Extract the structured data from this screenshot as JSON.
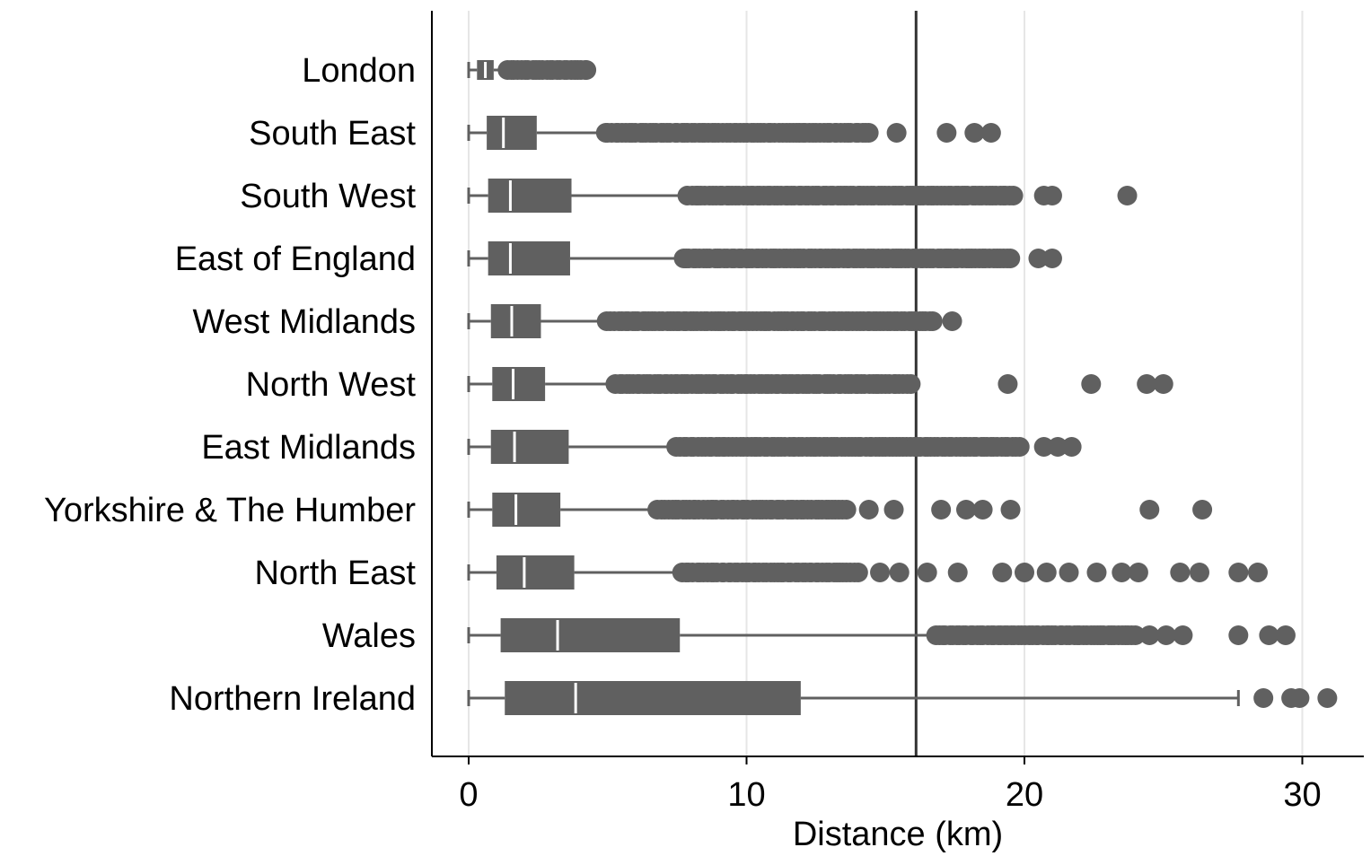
{
  "chart_data": {
    "type": "boxplot",
    "orientation": "horizontal",
    "xlabel": "Distance (km)",
    "ylabel": "",
    "xlim": [
      -1.3,
      32.2
    ],
    "xticks": [
      0,
      10,
      20,
      30
    ],
    "grid": "vertical",
    "reference_line": 16.1,
    "colors": {
      "box": "#606060",
      "median": "#ffffff",
      "grid": "#e6e6e6",
      "axis": "#000000",
      "reference": "#333333"
    },
    "categories": [
      "London",
      "South East",
      "South West",
      "East of England",
      "West Midlands",
      "North West",
      "East Midlands",
      "Yorkshire & The Humber",
      "North East",
      "Wales",
      "Northern Ireland"
    ],
    "boxes": [
      {
        "region": "London",
        "min": 0,
        "q1": 0.3,
        "median": 0.6,
        "q3": 0.9,
        "max": 1.4,
        "outlier_range": [
          1.4,
          4.2
        ],
        "outliers": [
          4.2
        ]
      },
      {
        "region": "South East",
        "min": 0,
        "q1": 0.65,
        "median": 1.25,
        "q3": 2.45,
        "max": 4.9,
        "outlier_range": [
          4.9,
          14.4
        ],
        "outliers": [
          15.4,
          17.2,
          18.2,
          18.8
        ]
      },
      {
        "region": "South West",
        "min": 0,
        "q1": 0.7,
        "median": 1.5,
        "q3": 3.7,
        "max": 7.9,
        "outlier_range": [
          7.9,
          19.6
        ],
        "outliers": [
          20.7,
          21.0,
          23.7
        ]
      },
      {
        "region": "East of England",
        "min": 0,
        "q1": 0.7,
        "median": 1.5,
        "q3": 3.65,
        "max": 7.7,
        "outlier_range": [
          7.7,
          19.5
        ],
        "outliers": [
          17.2,
          20.5,
          21.0
        ]
      },
      {
        "region": "West Midlands",
        "min": 0,
        "q1": 0.8,
        "median": 1.55,
        "q3": 2.6,
        "max": 5.0,
        "outlier_range": [
          5.0,
          16.7
        ],
        "outliers": [
          17.4
        ]
      },
      {
        "region": "North West",
        "min": 0,
        "q1": 0.85,
        "median": 1.6,
        "q3": 2.75,
        "max": 5.3,
        "outlier_range": [
          5.3,
          15.9
        ],
        "outliers": [
          19.4,
          22.4,
          24.4,
          25.0
        ]
      },
      {
        "region": "East Midlands",
        "min": 0,
        "q1": 0.8,
        "median": 1.65,
        "q3": 3.6,
        "max": 7.5,
        "outlier_range": [
          7.5,
          19.8
        ],
        "outliers": [
          20.7,
          21.2,
          21.7
        ]
      },
      {
        "region": "Yorkshire & The Humber",
        "min": 0,
        "q1": 0.85,
        "median": 1.7,
        "q3": 3.3,
        "max": 6.8,
        "outlier_range": [
          6.8,
          13.6
        ],
        "outliers": [
          14.4,
          15.3,
          17.0,
          17.9,
          18.5,
          19.5,
          24.5,
          26.4
        ]
      },
      {
        "region": "North East",
        "min": 0,
        "q1": 1.0,
        "median": 2.0,
        "q3": 3.8,
        "max": 7.7,
        "outlier_range": [
          7.7,
          14.0
        ],
        "outliers": [
          14.8,
          15.5,
          16.5,
          17.6,
          19.2,
          20.0,
          20.8,
          21.6,
          22.6,
          23.5,
          24.1,
          25.6,
          26.3,
          27.7,
          28.4
        ]
      },
      {
        "region": "Wales",
        "min": 0,
        "q1": 1.15,
        "median": 3.2,
        "q3": 7.6,
        "max": 16.8,
        "outlier_range": [
          16.8,
          24.0
        ],
        "outliers": [
          24.5,
          25.1,
          25.7,
          27.7,
          28.8,
          29.4
        ]
      },
      {
        "region": "Northern Ireland",
        "min": 0,
        "q1": 1.3,
        "median": 3.85,
        "q3": 11.95,
        "max": 27.7,
        "outlier_range": [],
        "outliers": [
          28.6,
          29.6,
          29.9,
          30.9
        ]
      }
    ]
  }
}
